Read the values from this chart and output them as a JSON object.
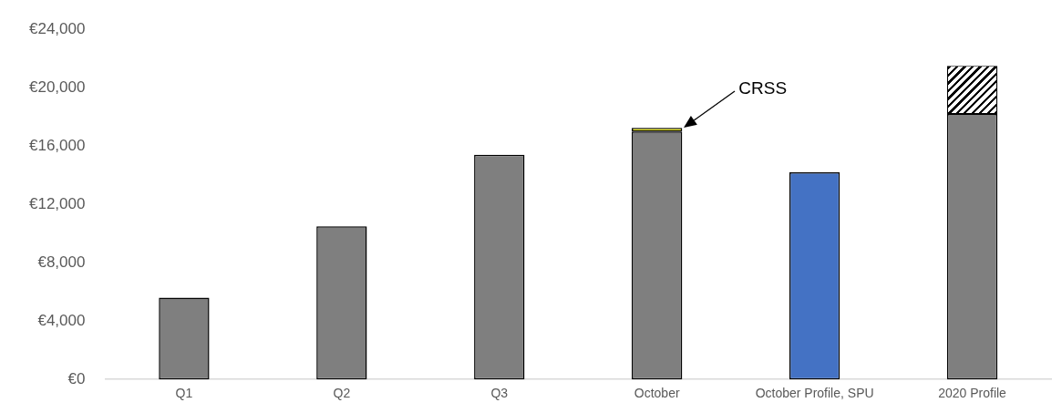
{
  "chart_data": {
    "type": "bar",
    "stacked": true,
    "categories": [
      "Q1",
      "Q2",
      "Q3",
      "October",
      "October Profile, SPU",
      "2020 Profile"
    ],
    "series": [
      {
        "color": "#7f7f7f",
        "values": [
          5600,
          10500,
          15400,
          17000,
          null,
          18200
        ]
      },
      {
        "color": "#ffff00",
        "values": [
          null,
          null,
          null,
          250,
          null,
          null
        ]
      },
      {
        "color": "#ffffff",
        "values": [
          null,
          null,
          null,
          null,
          null,
          3300
        ]
      },
      {
        "color": "#4472c4",
        "values": [
          null,
          null,
          null,
          null,
          14200,
          null
        ]
      }
    ],
    "ylim": [
      0,
      24000
    ],
    "yticks": [
      {
        "value": 0,
        "label": "€0"
      },
      {
        "value": 4000,
        "label": "€4,000"
      },
      {
        "value": 8000,
        "label": "€8,000"
      },
      {
        "value": 12000,
        "label": "€12,000"
      },
      {
        "value": 16000,
        "label": "€16,000"
      },
      {
        "value": 20000,
        "label": "€20,000"
      },
      {
        "value": 24000,
        "label": "€24,000"
      }
    ],
    "grid": false,
    "legend": false,
    "annotations": [
      "CRSS"
    ]
  }
}
